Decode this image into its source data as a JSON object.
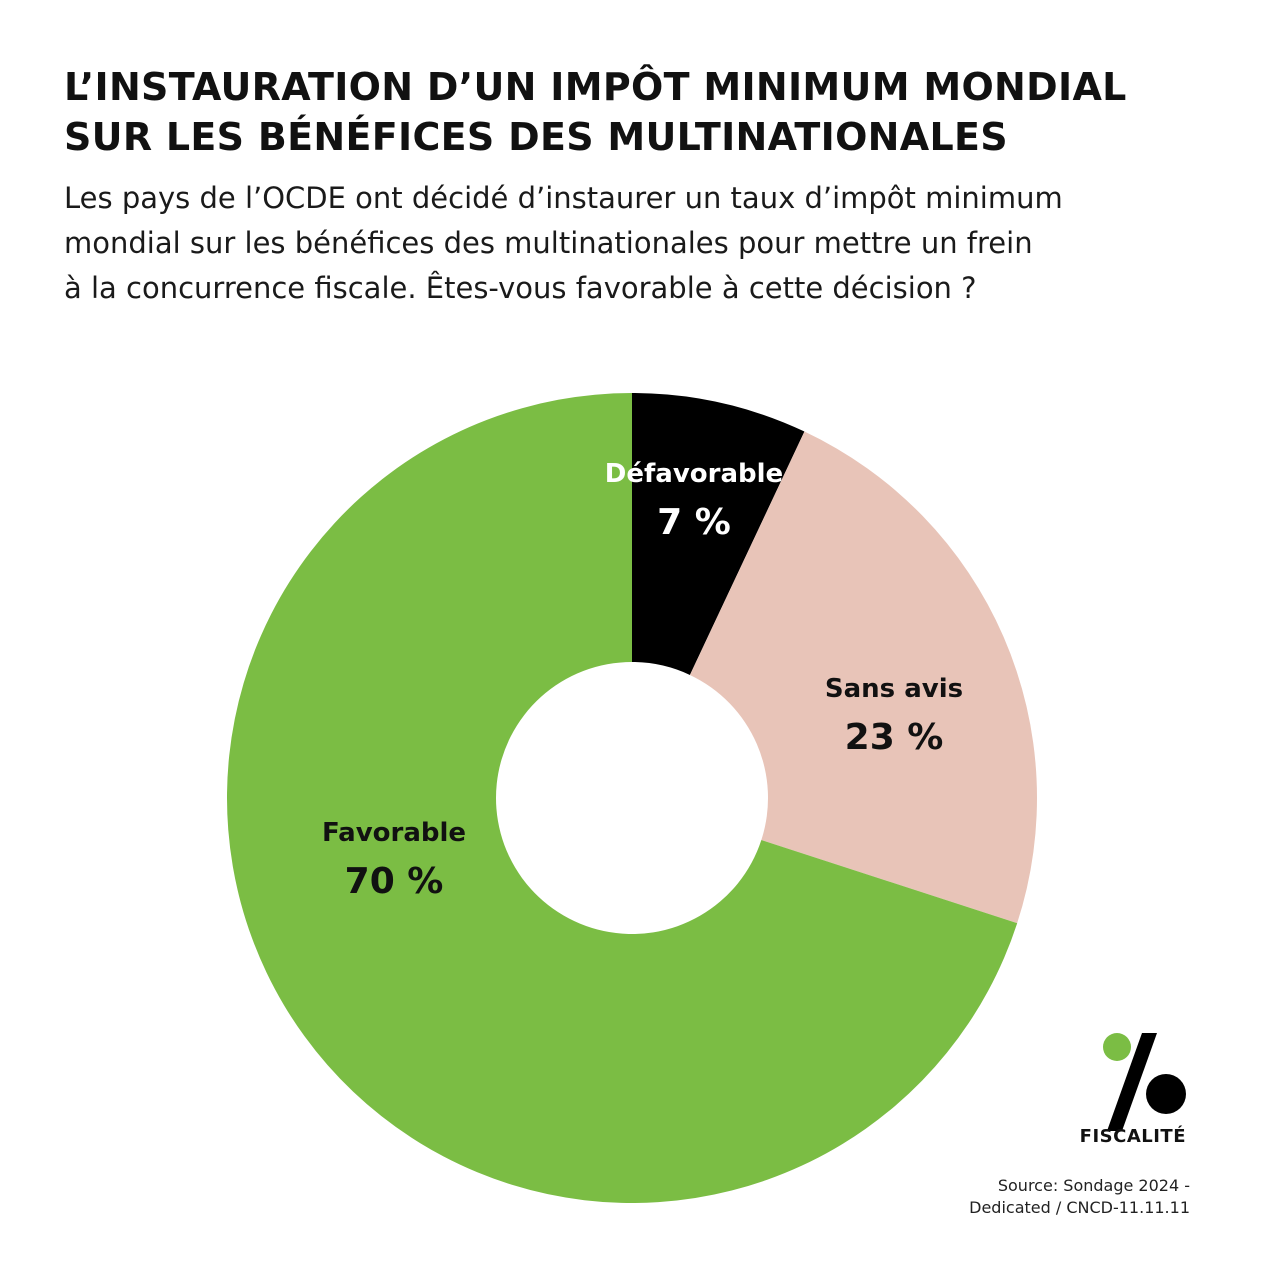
{
  "title_lines": [
    "L’INSTAURATION D’UN IMPÔT MINIMUM MONDIAL",
    "SUR LES BÉNÉFICES DES MULTINATIONALES"
  ],
  "subtitle_lines": [
    "Les pays de l’OCDE ont décidé d’instaurer un taux d’impôt minimum",
    "mondial sur les bénéfices des multinationales pour mettre un frein",
    "à la concurrence fiscale. Êtes-vous favorable à cette décision ?"
  ],
  "chart_data": {
    "type": "pie",
    "variant": "donut",
    "start": "top, clockwise",
    "slices": [
      {
        "label": "Défavorable",
        "value": 7,
        "value_label": "7 %",
        "color": "#000000",
        "label_color": "#ffffff"
      },
      {
        "label": "Sans avis",
        "value": 23,
        "value_label": "23 %",
        "color": "#e8c4b8",
        "label_color": "#111111"
      },
      {
        "label": "Favorable",
        "value": 70,
        "value_label": "70 %",
        "color": "#7bbd44",
        "label_color": "#111111"
      }
    ]
  },
  "logo": {
    "text": "FISCALITÉ",
    "icon": "percent-icon",
    "dot_color": "#7bbd44"
  },
  "source_lines": [
    "Source: Sondage 2024 -",
    "Dedicated /  CNCD-11.11.11"
  ]
}
